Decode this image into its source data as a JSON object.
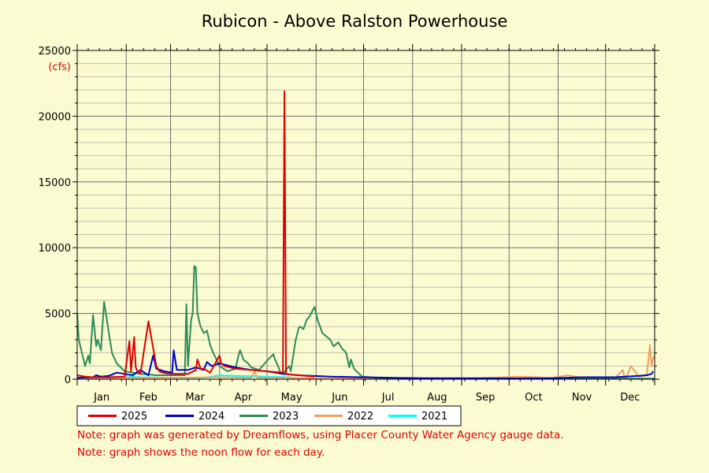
{
  "chart_data": {
    "type": "line",
    "title": "Rubicon - Above Ralston Powerhouse",
    "unit_label": "(cfs)",
    "ylim": [
      0,
      25000
    ],
    "y_ticks": [
      0,
      5000,
      10000,
      15000,
      20000,
      25000
    ],
    "xlim": [
      0,
      365
    ],
    "months": [
      "Jan",
      "Feb",
      "Mar",
      "Apr",
      "May",
      "Jun",
      "Jul",
      "Aug",
      "Sep",
      "Oct",
      "Nov",
      "Dec"
    ],
    "grid": true,
    "legend_position": "bottom",
    "series": [
      {
        "name": "2025",
        "color": "#e00000",
        "x": [
          0,
          5,
          10,
          20,
          30,
          33,
          34,
          36,
          37,
          38,
          40,
          45,
          50,
          52,
          54,
          56,
          60,
          65,
          70,
          75,
          76,
          78,
          80,
          84,
          90,
          91,
          93,
          100,
          110,
          120,
          130,
          131,
          132,
          135,
          140,
          150
        ],
        "y": [
          300,
          200,
          150,
          150,
          200,
          2900,
          600,
          3200,
          900,
          600,
          400,
          4400,
          1000,
          600,
          500,
          450,
          400,
          400,
          400,
          700,
          1500,
          800,
          800,
          500,
          1800,
          1200,
          1000,
          800,
          700,
          600,
          500,
          21900,
          400,
          350,
          300,
          200
        ]
      },
      {
        "name": "2024",
        "color": "#0000d0",
        "x": [
          0,
          10,
          12,
          15,
          20,
          25,
          30,
          35,
          40,
          45,
          48,
          50,
          55,
          60,
          61,
          63,
          70,
          75,
          80,
          82,
          85,
          90,
          100,
          110,
          120,
          130,
          140,
          160,
          180,
          200,
          220,
          240,
          260,
          280,
          300,
          320,
          340,
          355,
          360,
          363,
          364
        ],
        "y": [
          100,
          150,
          300,
          200,
          250,
          500,
          400,
          300,
          700,
          300,
          1800,
          800,
          600,
          500,
          2200,
          700,
          700,
          900,
          700,
          1300,
          1000,
          1200,
          900,
          700,
          600,
          400,
          300,
          200,
          150,
          100,
          80,
          70,
          60,
          60,
          80,
          150,
          150,
          250,
          300,
          400,
          600
        ]
      },
      {
        "name": "2023",
        "color": "#2e8b57",
        "x": [
          0,
          1,
          3,
          5,
          7,
          8,
          10,
          12,
          13,
          15,
          17,
          20,
          22,
          25,
          30,
          40,
          50,
          60,
          68,
          69,
          70,
          72,
          73,
          74,
          75,
          76,
          77,
          78,
          80,
          82,
          84,
          86,
          90,
          95,
          100,
          102,
          103,
          105,
          108,
          110,
          115,
          120,
          124,
          125,
          127,
          128,
          130,
          134,
          135,
          138,
          140,
          141,
          142,
          143,
          145,
          147,
          150,
          152,
          155,
          160,
          162,
          165,
          167,
          170,
          172,
          173,
          175,
          180,
          190,
          200,
          250,
          300,
          340,
          350,
          360,
          365
        ],
        "y": [
          5000,
          3000,
          2000,
          1000,
          1800,
          1200,
          4900,
          2500,
          3000,
          2200,
          5900,
          3500,
          2000,
          1200,
          600,
          400,
          300,
          300,
          300,
          5700,
          1000,
          4500,
          5000,
          8600,
          8500,
          5000,
          4500,
          4000,
          3500,
          3700,
          2600,
          2000,
          1000,
          600,
          800,
          1800,
          2200,
          1500,
          1200,
          900,
          700,
          1400,
          1900,
          1500,
          1000,
          600,
          400,
          1000,
          600,
          2900,
          3900,
          4000,
          3900,
          3800,
          4500,
          4800,
          5500,
          4500,
          3500,
          3000,
          2500,
          2800,
          2400,
          2000,
          900,
          1500,
          800,
          200,
          100,
          50,
          50,
          50,
          50,
          50,
          50,
          50
        ]
      },
      {
        "name": "2022",
        "color": "#f0a060",
        "x": [
          0,
          30,
          60,
          90,
          110,
          112,
          114,
          130,
          160,
          200,
          240,
          280,
          290,
          300,
          305,
          310,
          315,
          320,
          330,
          340,
          345,
          346,
          347,
          350,
          355,
          360,
          362,
          363,
          364,
          365
        ],
        "y": [
          100,
          100,
          100,
          150,
          100,
          600,
          100,
          100,
          50,
          50,
          50,
          200,
          150,
          100,
          200,
          300,
          200,
          100,
          100,
          100,
          700,
          100,
          100,
          1000,
          200,
          300,
          2600,
          1000,
          1600,
          1800
        ]
      },
      {
        "name": "2021",
        "color": "#00ffff",
        "x": [
          0,
          30,
          35,
          40,
          60,
          80,
          90,
          100,
          120,
          135
        ],
        "y": [
          100,
          100,
          200,
          150,
          100,
          100,
          300,
          250,
          200,
          150
        ]
      }
    ]
  },
  "notes": [
    "Note: graph was generated by Dreamflows, using Placer County Water Agency gauge data.",
    "Note: graph shows the noon flow for each day."
  ]
}
